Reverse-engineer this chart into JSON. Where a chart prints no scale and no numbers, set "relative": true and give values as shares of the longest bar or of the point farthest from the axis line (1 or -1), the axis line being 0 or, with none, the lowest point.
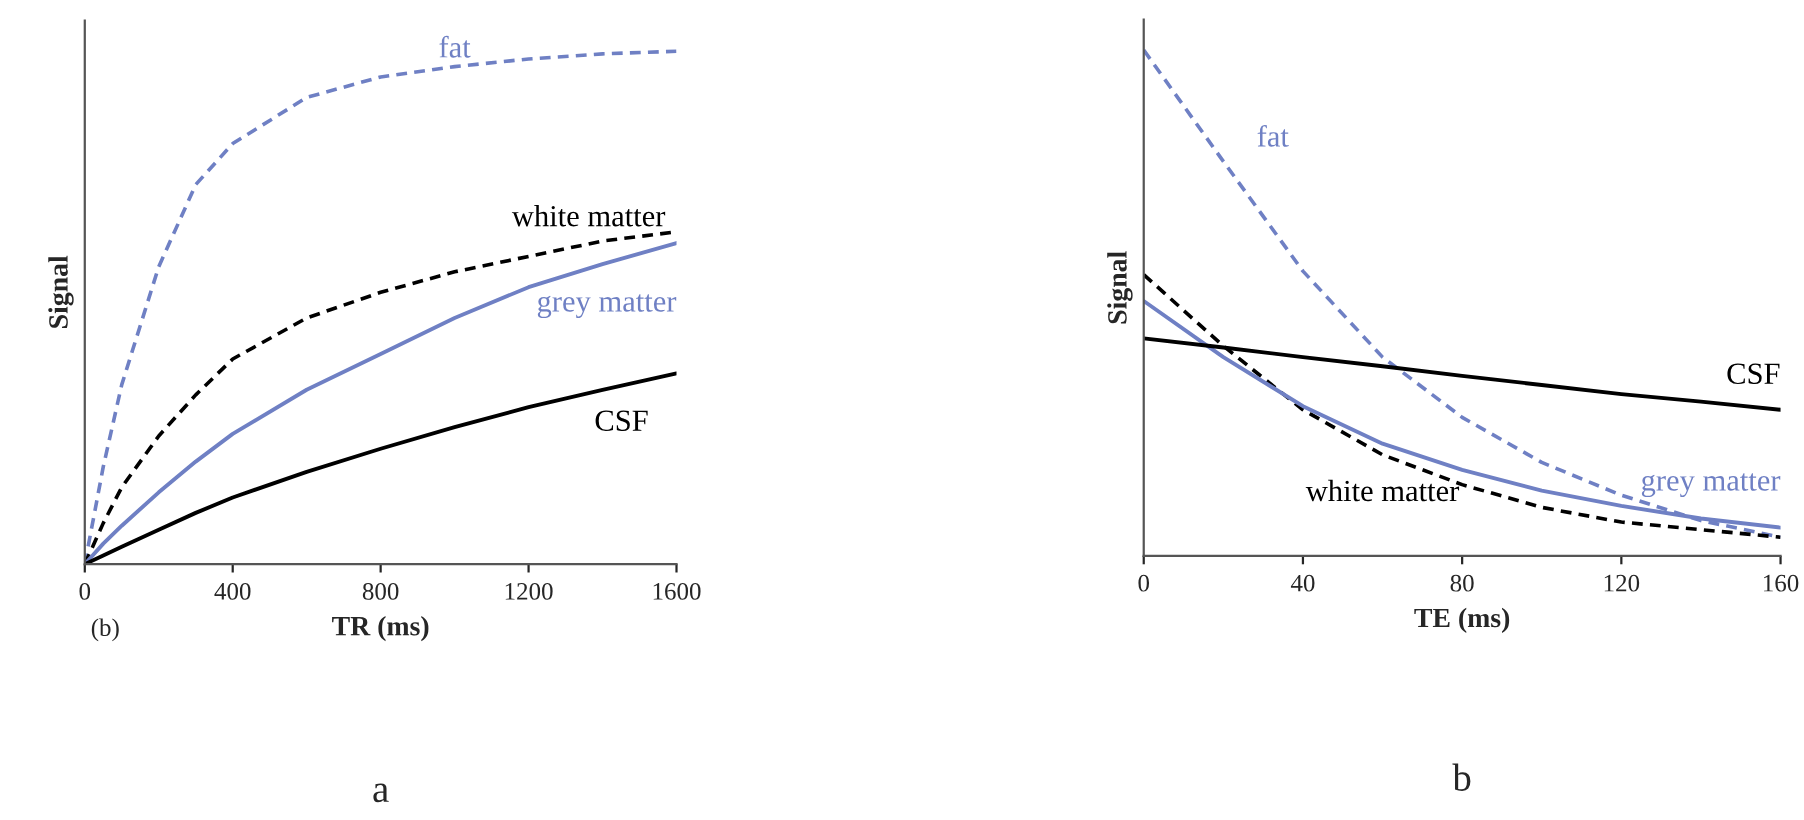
{
  "chart_data": [
    {
      "type": "line",
      "relative": true,
      "xlabel": "TR (ms)",
      "ylabel": "Signal",
      "xlim": [
        0,
        1600
      ],
      "xticks": [
        0,
        400,
        800,
        1200,
        1600
      ],
      "tick_labels": "x",
      "grid": false,
      "legend": false,
      "annotations": [
        "(b)",
        "a"
      ],
      "x": [
        0,
        50,
        100,
        200,
        300,
        400,
        600,
        800,
        1000,
        1200,
        1400,
        1600
      ],
      "series": [
        {
          "name": "fat",
          "color": "#6f80c4",
          "line_style": "dashed",
          "values": [
            0,
            0.19,
            0.35,
            0.58,
            0.74,
            0.82,
            0.91,
            0.95,
            0.97,
            0.985,
            0.995,
            1.0
          ]
        },
        {
          "name": "white matter",
          "color": "#000000",
          "line_style": "dashed",
          "values": [
            0,
            0.08,
            0.15,
            0.25,
            0.33,
            0.4,
            0.48,
            0.53,
            0.57,
            0.6,
            0.63,
            0.648
          ]
        },
        {
          "name": "grey matter",
          "color": "#6f80c4",
          "line_style": "solid",
          "values": [
            0,
            0.04,
            0.075,
            0.14,
            0.2,
            0.254,
            0.34,
            0.41,
            0.48,
            0.54,
            0.585,
            0.626
          ]
        },
        {
          "name": "CSF",
          "color": "#000000",
          "line_style": "solid",
          "values": [
            0,
            0.017,
            0.034,
            0.067,
            0.1,
            0.13,
            0.18,
            0.225,
            0.267,
            0.306,
            0.34,
            0.372
          ]
        }
      ]
    },
    {
      "type": "line",
      "relative": true,
      "xlabel": "TE (ms)",
      "ylabel": "Signal",
      "xlim": [
        0,
        160
      ],
      "xticks": [
        0,
        40,
        80,
        120,
        160
      ],
      "tick_labels": "x",
      "grid": false,
      "legend": false,
      "annotations": [
        "b"
      ],
      "x": [
        0,
        20,
        40,
        60,
        80,
        100,
        120,
        140,
        160
      ],
      "series": [
        {
          "name": "fat",
          "color": "#6f80c4",
          "line_style": "dashed",
          "values": [
            1.0,
            0.78,
            0.563,
            0.393,
            0.274,
            0.185,
            0.12,
            0.07,
            0.037
          ]
        },
        {
          "name": "white matter",
          "color": "#000000",
          "line_style": "dashed",
          "values": [
            0.556,
            0.415,
            0.289,
            0.2,
            0.141,
            0.096,
            0.067,
            0.052,
            0.037
          ]
        },
        {
          "name": "grey matter",
          "color": "#6f80c4",
          "line_style": "solid",
          "values": [
            0.504,
            0.393,
            0.296,
            0.222,
            0.17,
            0.129,
            0.099,
            0.074,
            0.056
          ]
        },
        {
          "name": "CSF",
          "color": "#000000",
          "line_style": "solid",
          "values": [
            0.43,
            0.412,
            0.393,
            0.375,
            0.356,
            0.338,
            0.32,
            0.305,
            0.289
          ]
        }
      ]
    }
  ]
}
